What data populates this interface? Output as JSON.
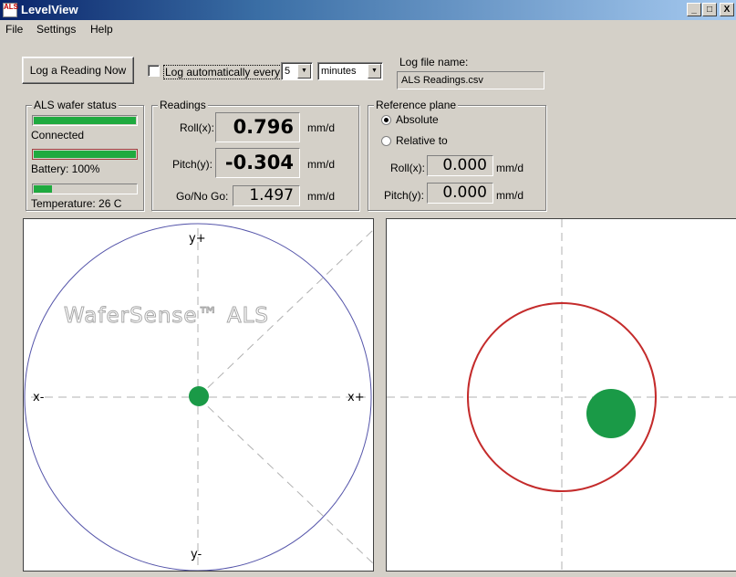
{
  "window": {
    "title": "LevelView",
    "icon_text": "ALS",
    "controls": [
      "_",
      "□",
      "X"
    ]
  },
  "menu": [
    "File",
    "Settings",
    "Help"
  ],
  "toolbar": {
    "log_now_label": "Log a Reading Now",
    "log_auto_label": "Log automatically every",
    "log_auto_checked": false,
    "interval_value": "5",
    "interval_unit": "minutes",
    "log_file_label": "Log file name:",
    "log_file_value": "ALS Readings.csv"
  },
  "wafer_status": {
    "title": "ALS wafer status",
    "connection_text": "Connected",
    "connection_level": 1.0,
    "battery_text": "Battery: 100%",
    "battery_level": 1.0,
    "temperature_text": "Temperature: 26 C",
    "temperature_level": 0.18
  },
  "readings": {
    "title": "Readings",
    "roll_label": "Roll(x):",
    "roll_value": "0.796",
    "pitch_label": "Pitch(y):",
    "pitch_value": "-0.304",
    "gonogo_label": "Go/No Go:",
    "gonogo_value": "1.497",
    "unit": "mm/d"
  },
  "reference_plane": {
    "title": "Reference plane",
    "absolute_label": "Absolute",
    "relative_label": "Relative to",
    "selected": "absolute",
    "roll_label": "Roll(x):",
    "roll_value": "0.000",
    "pitch_label": "Pitch(y):",
    "pitch_value": "0.000",
    "unit": "mm/d"
  },
  "left_plot": {
    "watermark": "WaferSense™ ALS",
    "axis_y_plus": "y+",
    "axis_y_minus": "y-",
    "axis_x_plus": "x+",
    "axis_x_minus": "x-",
    "circle_color": "#5555aa",
    "dot_color": "#1a9a47"
  },
  "right_plot": {
    "circle_color": "#c42b2b",
    "dot_color": "#1a9a47"
  }
}
